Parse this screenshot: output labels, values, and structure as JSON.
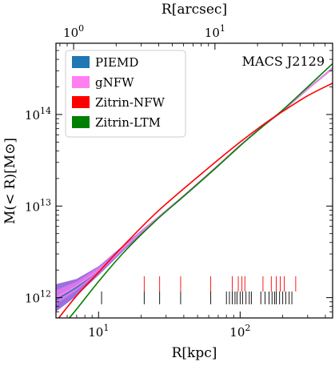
{
  "chart_data": {
    "type": "line",
    "title": "",
    "annotation": "MACS J2129",
    "xlabel": "R[kpc]",
    "ylabel": "M(< R)[M⊙]",
    "top_xlabel": "R[arcsec]",
    "xscale": "log",
    "yscale": "log",
    "xlim": [
      5,
      450
    ],
    "ylim": [
      600000000000.0,
      600000000000000.0
    ],
    "top_xlim": [
      0.75,
      68
    ],
    "x_ticks": [
      {
        "value": 10,
        "label": "10",
        "exp": "1"
      },
      {
        "value": 100,
        "label": "10",
        "exp": "2"
      }
    ],
    "y_ticks": [
      {
        "value": 1000000000000.0,
        "label": "10",
        "exp": "12"
      },
      {
        "value": 10000000000000.0,
        "label": "10",
        "exp": "13"
      },
      {
        "value": 100000000000000.0,
        "label": "10",
        "exp": "14"
      }
    ],
    "top_ticks": [
      {
        "value": 1,
        "label": "10",
        "exp": "0"
      },
      {
        "value": 10,
        "label": "10",
        "exp": "1"
      }
    ],
    "legend_position": "top-left",
    "legend": [
      {
        "label": "PIEMD",
        "color": "#1f77b4"
      },
      {
        "label": "gNFW",
        "color": "#ff7ff0"
      },
      {
        "label": "Zitrin-NFW",
        "color": "#ff0000"
      },
      {
        "label": "Zitrin-LTM",
        "color": "#008000"
      }
    ],
    "series": [
      {
        "name": "PIEMD",
        "color": "#1f77b4",
        "x": [
          5,
          7,
          10,
          15,
          25,
          40,
          70,
          100,
          150,
          200,
          300,
          450
        ],
        "y": [
          950000000000.0,
          1300000000000.0,
          2000000000000.0,
          3500000000000.0,
          7000000000000.0,
          13000000000000.0,
          28000000000000.0,
          46000000000000.0,
          78000000000000.0,
          110000000000000.0,
          190000000000000.0,
          320000000000000.0
        ],
        "y_low": [
          700000000000.0,
          1050000000000.0,
          1750000000000.0,
          3250000000000.0,
          6800000000000.0,
          12800000000000.0,
          27500000000000.0,
          45000000000000.0,
          76000000000000.0,
          107000000000000.0,
          185000000000000.0,
          310000000000000.0
        ],
        "y_high": [
          1400000000000.0,
          1600000000000.0,
          2200000000000.0,
          3750000000000.0,
          7200000000000.0,
          13200000000000.0,
          28500000000000.0,
          47000000000000.0,
          80000000000000.0,
          113000000000000.0,
          195000000000000.0,
          330000000000000.0
        ]
      },
      {
        "name": "gNFW",
        "color": "#ff7ff0",
        "x": [
          5,
          7,
          10,
          15,
          25,
          40,
          70,
          100,
          150,
          200,
          300,
          450
        ],
        "y": [
          1000000000000.0,
          1350000000000.0,
          2000000000000.0,
          3500000000000.0,
          7000000000000.0,
          13000000000000.0,
          28000000000000.0,
          46000000000000.0,
          78000000000000.0,
          110000000000000.0,
          190000000000000.0,
          320000000000000.0
        ],
        "y_low": [
          850000000000.0,
          1200000000000.0,
          1850000000000.0,
          3350000000000.0,
          6850000000000.0,
          12800000000000.0,
          27600000000000.0,
          45500000000000.0,
          77000000000000.0,
          108000000000000.0,
          187000000000000.0,
          315000000000000.0
        ],
        "y_high": [
          1200000000000.0,
          1500000000000.0,
          2150000000000.0,
          3650000000000.0,
          7150000000000.0,
          13200000000000.0,
          28400000000000.0,
          46500000000000.0,
          79000000000000.0,
          112000000000000.0,
          193000000000000.0,
          325000000000000.0
        ]
      },
      {
        "name": "Zitrin-NFW",
        "color": "#ff0000",
        "x": [
          5,
          7,
          10,
          15,
          25,
          40,
          70,
          100,
          150,
          200,
          300,
          450
        ],
        "y": [
          550000000000.0,
          1050000000000.0,
          1900000000000.0,
          3700000000000.0,
          8200000000000.0,
          15500000000000.0,
          32000000000000.0,
          50000000000000.0,
          80000000000000.0,
          108000000000000.0,
          160000000000000.0,
          220000000000000.0
        ]
      },
      {
        "name": "Zitrin-LTM",
        "color": "#008000",
        "x": [
          5,
          7,
          10,
          15,
          25,
          40,
          70,
          100,
          150,
          200,
          300,
          450
        ],
        "y": [
          400000000000.0,
          750000000000.0,
          1500000000000.0,
          3100000000000.0,
          6800000000000.0,
          12800000000000.0,
          27500000000000.0,
          45500000000000.0,
          78000000000000.0,
          112000000000000.0,
          200000000000000.0,
          360000000000000.0
        ]
      }
    ],
    "rugs": [
      {
        "color": "#ff0000",
        "x": [
          21,
          27,
          38,
          62,
          88,
          97,
          103,
          108,
          145,
          166,
          180,
          192,
          205,
          247
        ]
      },
      {
        "color": "#000000",
        "x": [
          10.5,
          21,
          27,
          38,
          62,
          80,
          84,
          88,
          92,
          95,
          100,
          104,
          110,
          116,
          120,
          140,
          150,
          160,
          168,
          175,
          180,
          190,
          200,
          210,
          222,
          232
        ]
      }
    ]
  }
}
